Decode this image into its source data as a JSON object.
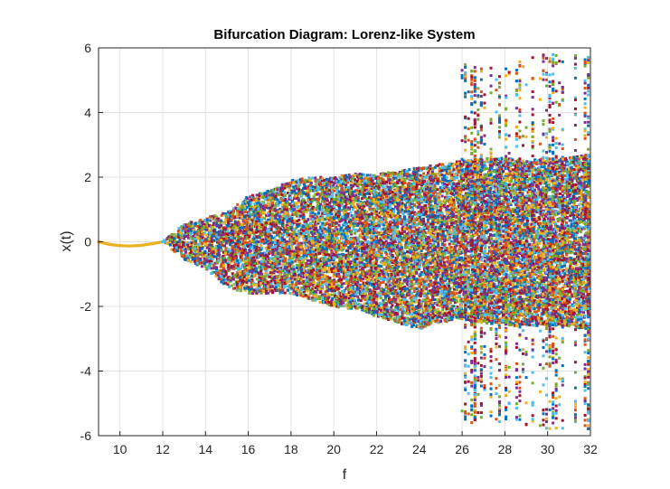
{
  "chart_data": {
    "type": "scatter",
    "title": "Bifurcation Diagram: Lorenz-like System",
    "xlabel": "f",
    "ylabel": "x(t)",
    "xlim": [
      9,
      32
    ],
    "ylim": [
      -6,
      6
    ],
    "x_ticks": [
      10,
      12,
      14,
      16,
      18,
      20,
      22,
      24,
      26,
      28,
      30,
      32
    ],
    "y_ticks": [
      -6,
      -4,
      -2,
      0,
      2,
      4,
      6
    ],
    "grid": true,
    "box": true,
    "series_colors": [
      "#0072BD",
      "#D95319",
      "#EDB120",
      "#7E2F8E",
      "#77AC30",
      "#4DBEEE",
      "#A2142F"
    ],
    "single_branch": {
      "x": [
        9.0,
        9.5,
        10.0,
        10.5,
        11.0,
        11.5,
        12.0
      ],
      "y": [
        0.0,
        -0.08,
        -0.12,
        -0.13,
        -0.11,
        -0.06,
        0.0
      ],
      "color": "#EDB120"
    },
    "envelope": {
      "x": [
        12.0,
        13.0,
        14.0,
        15.0,
        16.0,
        17.0,
        18.0,
        19.0,
        20.0,
        21.0,
        22.0,
        23.0,
        24.0,
        25.0,
        26.0,
        27.0,
        28.0,
        29.0,
        30.0,
        31.0,
        32.0
      ],
      "upper": [
        0.0,
        0.55,
        0.75,
        0.9,
        1.4,
        1.6,
        1.9,
        2.0,
        2.0,
        2.1,
        2.1,
        2.2,
        2.3,
        2.4,
        2.5,
        2.6,
        2.6,
        2.5,
        2.6,
        2.6,
        2.7
      ],
      "lower": [
        0.0,
        -0.55,
        -0.8,
        -1.4,
        -1.6,
        -1.6,
        -1.6,
        -1.8,
        -2.0,
        -2.1,
        -2.3,
        -2.5,
        -2.7,
        -2.5,
        -2.4,
        -2.5,
        -2.6,
        -2.6,
        -2.6,
        -2.6,
        -2.8
      ]
    },
    "wide_bands": [
      {
        "x_start": 26.0,
        "x_end": 26.6,
        "y_min": -5.6,
        "y_max": 5.5
      },
      {
        "x_start": 26.6,
        "x_end": 27.5,
        "y_min": -5.6,
        "y_max": 5.5
      },
      {
        "x_start": 27.6,
        "x_end": 28.3,
        "y_min": -5.6,
        "y_max": 5.6
      },
      {
        "x_start": 28.4,
        "x_end": 29.4,
        "y_min": -5.7,
        "y_max": 5.7
      },
      {
        "x_start": 29.5,
        "x_end": 30.8,
        "y_min": -5.8,
        "y_max": 5.8
      },
      {
        "x_start": 31.0,
        "x_end": 32.0,
        "y_min": -5.8,
        "y_max": 5.8
      }
    ]
  }
}
